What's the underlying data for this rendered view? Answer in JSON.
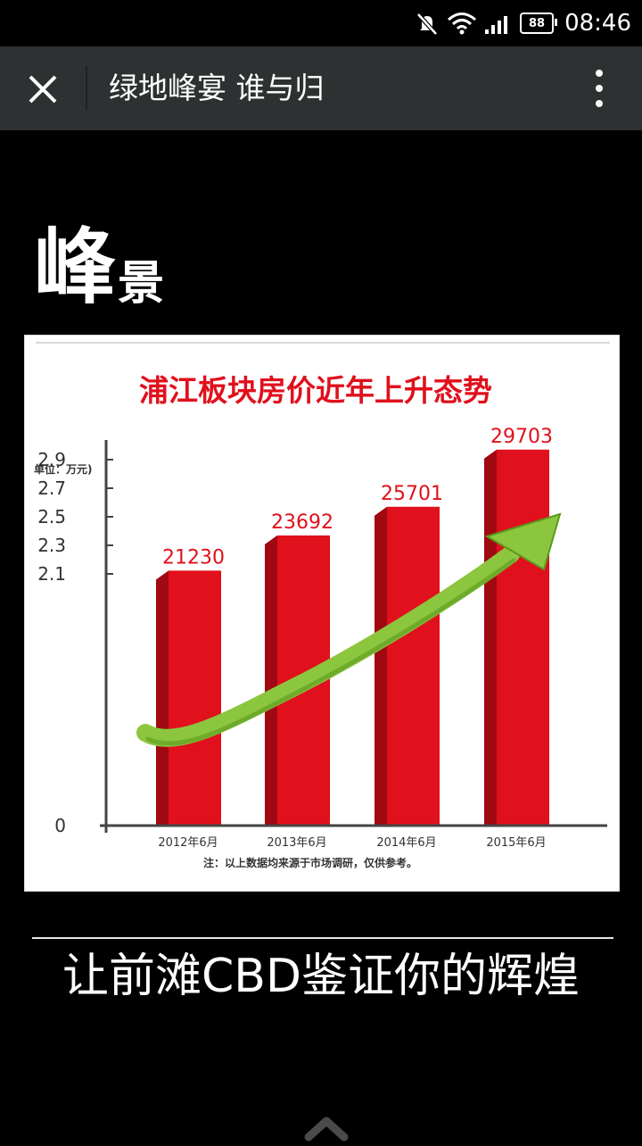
{
  "status_bar": {
    "time": "08:46",
    "battery": "88",
    "icons": [
      "mute-icon",
      "wifi-icon",
      "signal-icon",
      "battery-icon"
    ]
  },
  "app_bar": {
    "title": "绿地峰宴 谁与归",
    "close_icon": "close-icon",
    "more_icon": "more-vertical-icon"
  },
  "section": {
    "heading_big": "峰",
    "heading_small": "景"
  },
  "chart_data": {
    "type": "bar",
    "title": "浦江板块房价近年上升态势",
    "unit_label": "单位：万元)",
    "categories": [
      "2012年6月",
      "2013年6月",
      "2014年6月",
      "2015年6月"
    ],
    "values": [
      21230,
      23692,
      25701,
      29703
    ],
    "data_labels": [
      "21230",
      "23692",
      "25701",
      "29703"
    ],
    "y_ticks": [
      "0",
      "2.1",
      "2.3",
      "2.5",
      "2.7",
      "2.9"
    ],
    "ylim": [
      2.0,
      3.0
    ],
    "axis_break": true,
    "bar_color": "#e0101c",
    "bar_side_color": "#a00812",
    "label_color": "#e0101c",
    "title_color": "#e0101c",
    "arrow_color": "#8cc63f",
    "note": "注：以上数据均来源于市场调研，仅供参考。",
    "grid": false
  },
  "footer": {
    "slogan": "让前滩CBD鉴证你的辉煌",
    "scroll_icon": "chevron-up-icon"
  }
}
